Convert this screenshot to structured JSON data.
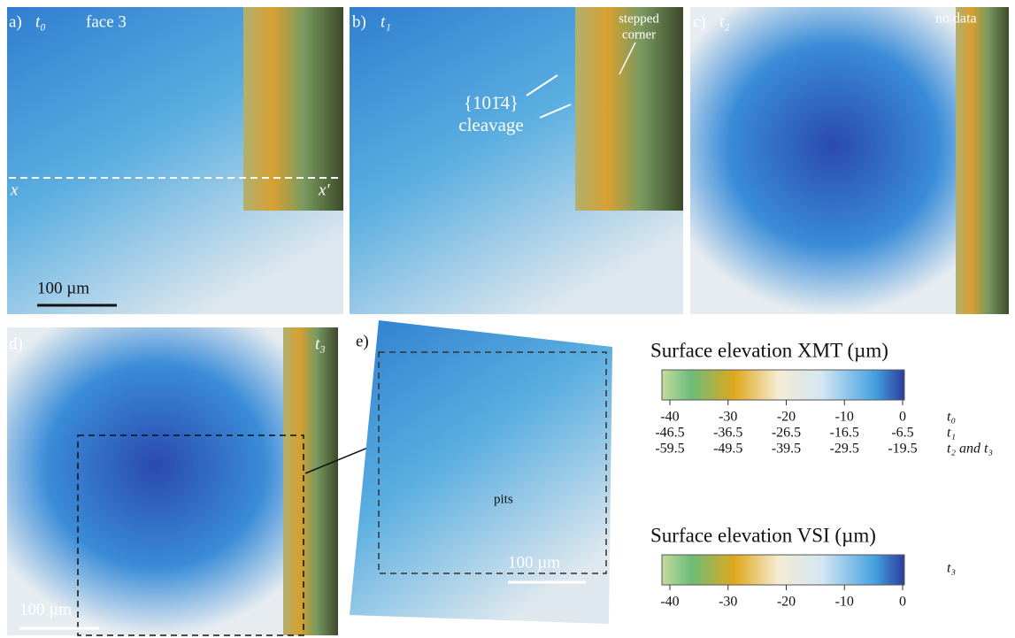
{
  "panels": [
    {
      "label": "a)",
      "time": "t₀",
      "caption": "face 3",
      "line_start": "x",
      "line_end": "x'",
      "scale": "100 µm"
    },
    {
      "label": "b)",
      "time": "t₁",
      "note_lines": [
        "stepped",
        "corner"
      ],
      "feature_lines": [
        "{101̄4}",
        "cleavage"
      ]
    },
    {
      "label": "c)",
      "time": "t₂",
      "note": "no data"
    },
    {
      "label": "d)",
      "time": "t₃",
      "scale": "100 µm"
    },
    {
      "label": "e)",
      "note": "pits",
      "scale": "100 µm"
    }
  ],
  "colorbars": [
    {
      "title": "Surface elevation XMT (µm)",
      "rows": [
        {
          "label": "t₀",
          "lim": [
            -40,
            0
          ],
          "ticks": [
            -40,
            -30,
            -20,
            -10,
            0
          ]
        },
        {
          "label": "t₁",
          "lim": [
            -46.5,
            -6.5
          ],
          "ticks": [
            -46.5,
            -36.5,
            -26.5,
            -16.5,
            -6.5
          ]
        },
        {
          "label": "t₂ and t₃",
          "lim": [
            -59.5,
            -19.5
          ],
          "ticks": [
            -59.5,
            -49.5,
            -39.5,
            -29.5,
            -19.5
          ]
        }
      ]
    },
    {
      "title": "Surface elevation VSI (µm)",
      "rows": [
        {
          "label": "t₃",
          "lim": [
            -40,
            0
          ],
          "ticks": [
            -40,
            -30,
            -20,
            -10,
            0
          ]
        }
      ]
    }
  ]
}
